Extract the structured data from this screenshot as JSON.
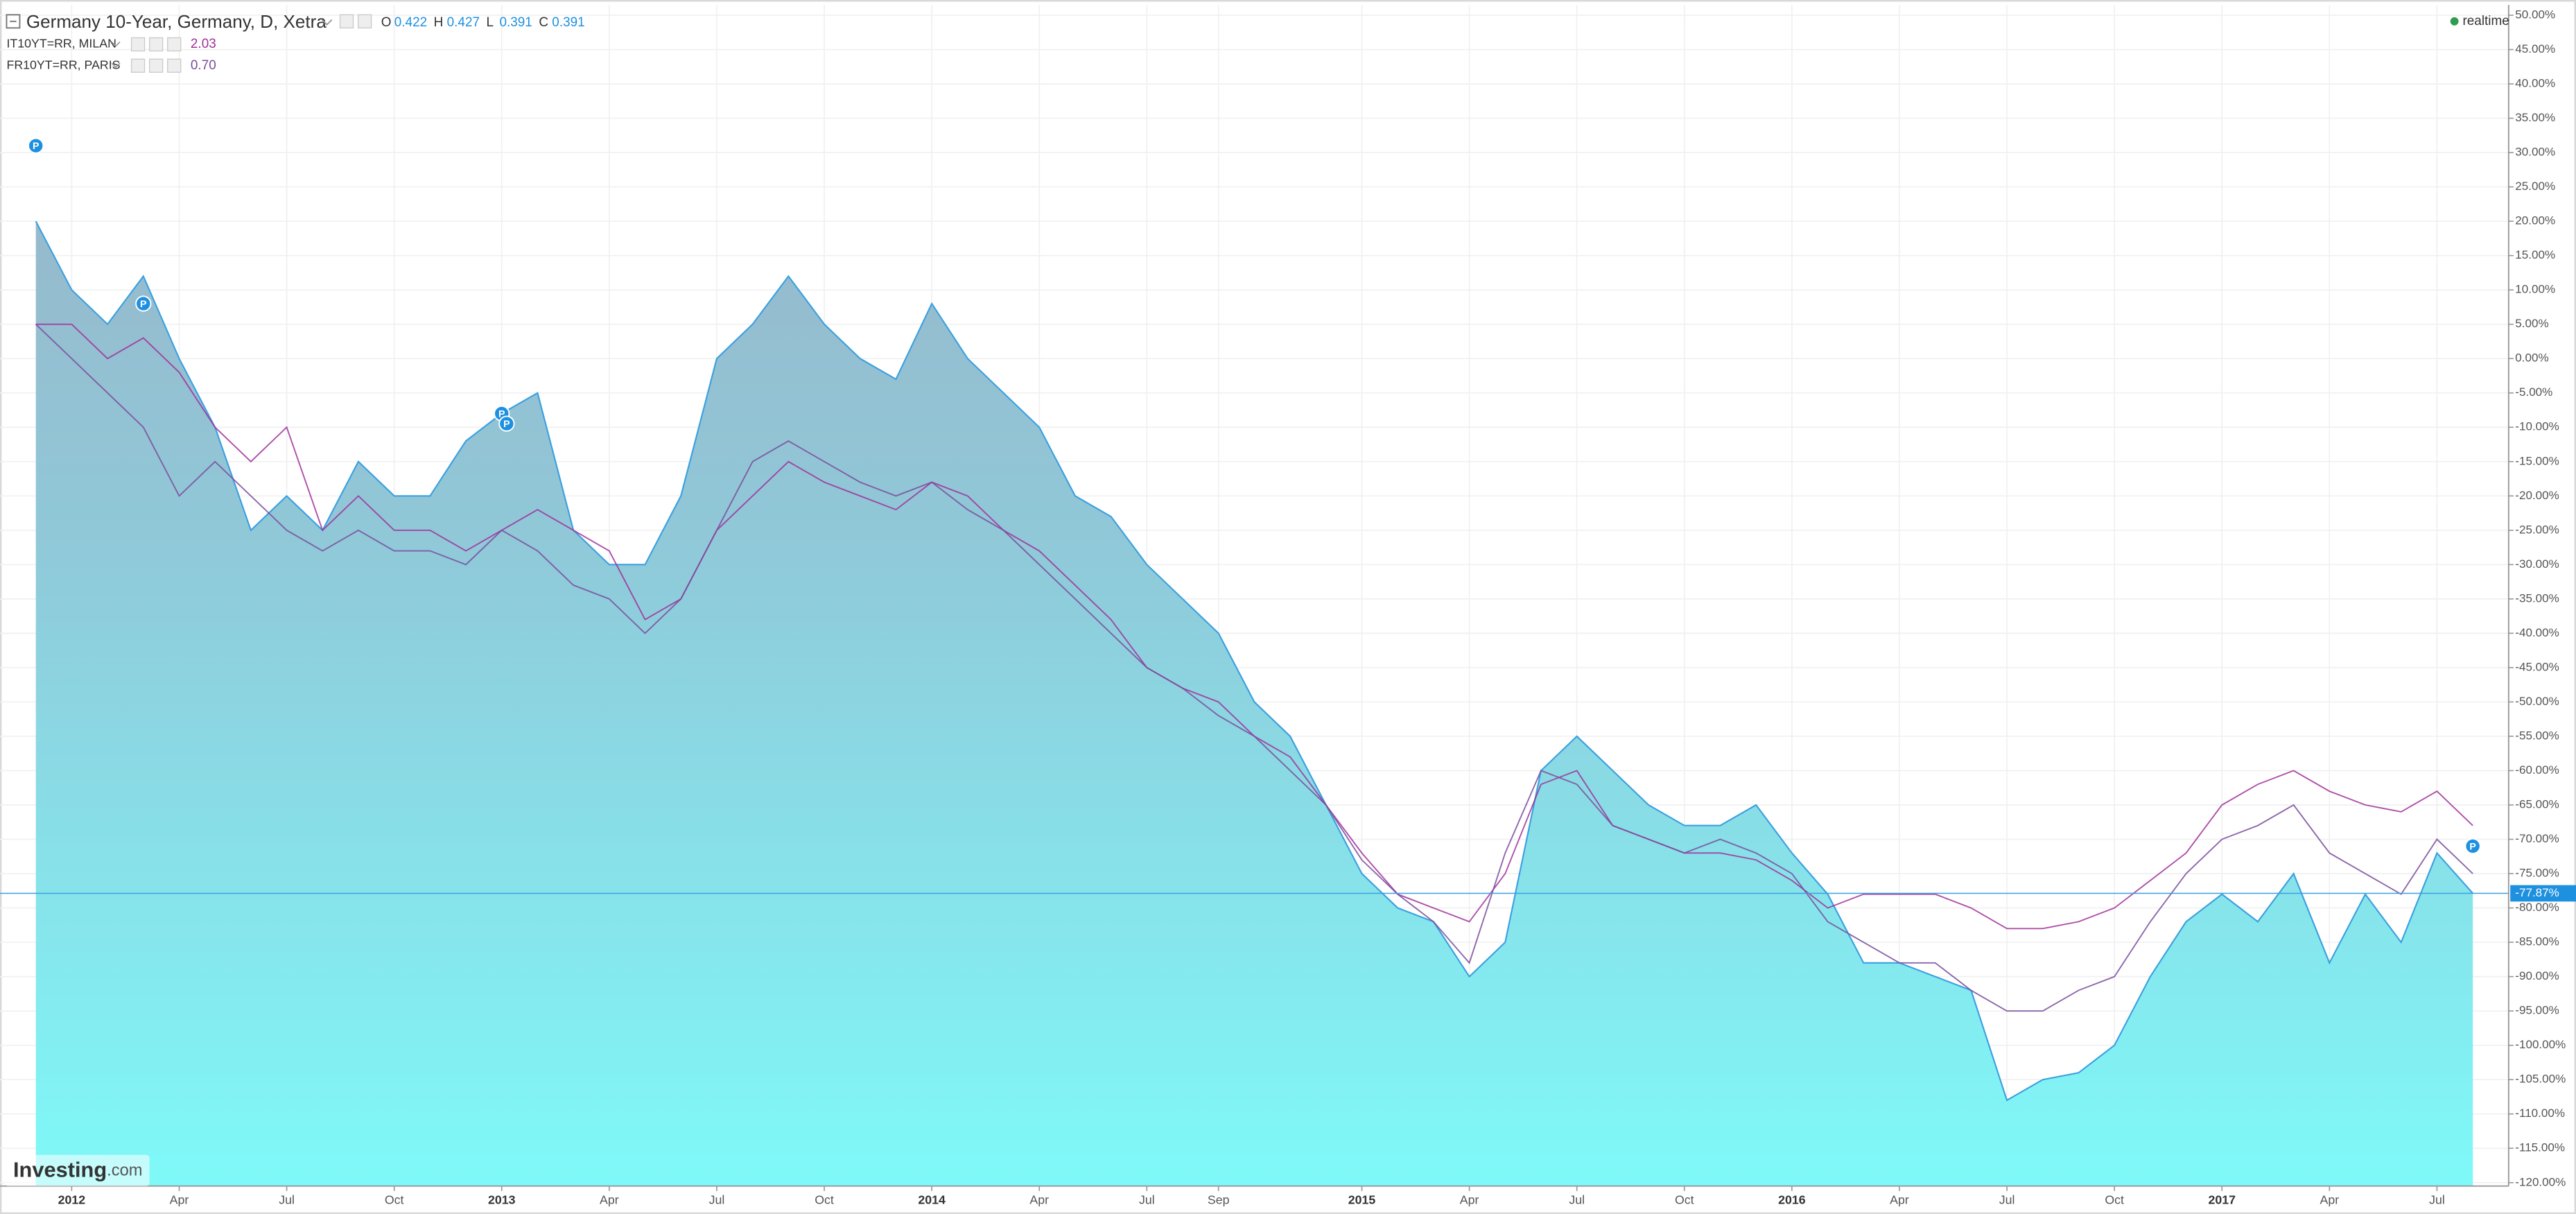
{
  "chart_data": {
    "type": "line",
    "title": "Germany 10-Year, Germany, D, Xetra",
    "ohlc": [
      {
        "label": "O",
        "value": "0.422"
      },
      {
        "label": "H",
        "value": "0.427"
      },
      {
        "label": "L",
        "value": "0.391"
      },
      {
        "label": "C",
        "value": "0.391"
      }
    ],
    "realtime": "realtime",
    "brand": {
      "name": "Investing",
      "suffix": ".com"
    },
    "x": [
      "2011-12",
      "2012-01",
      "2012-02",
      "2012-03",
      "2012-04",
      "2012-05",
      "2012-06",
      "2012-07",
      "2012-08",
      "2012-09",
      "2012-10",
      "2012-11",
      "2012-12",
      "2013-01",
      "2013-02",
      "2013-03",
      "2013-04",
      "2013-05",
      "2013-06",
      "2013-07",
      "2013-08",
      "2013-09",
      "2013-10",
      "2013-11",
      "2013-12",
      "2014-01",
      "2014-02",
      "2014-03",
      "2014-04",
      "2014-05",
      "2014-06",
      "2014-07",
      "2014-08",
      "2014-09",
      "2014-10",
      "2014-11",
      "2014-12",
      "2015-01",
      "2015-02",
      "2015-03",
      "2015-04",
      "2015-05",
      "2015-06",
      "2015-07",
      "2015-08",
      "2015-09",
      "2015-10",
      "2015-11",
      "2015-12",
      "2016-01",
      "2016-02",
      "2016-03",
      "2016-04",
      "2016-05",
      "2016-06",
      "2016-07",
      "2016-08",
      "2016-09",
      "2016-10",
      "2016-11",
      "2016-12",
      "2017-01",
      "2017-02",
      "2017-03",
      "2017-04",
      "2017-05",
      "2017-06",
      "2017-07",
      "2017-08"
    ],
    "series": [
      {
        "name": "Germany 10-Year",
        "color": "#3aa0e0",
        "area": true,
        "values": [
          20,
          10,
          5,
          12,
          0,
          -10,
          -25,
          -20,
          -25,
          -15,
          -20,
          -20,
          -12,
          -8,
          -5,
          -25,
          -30,
          -30,
          -20,
          0,
          5,
          12,
          5,
          0,
          -3,
          8,
          0,
          -5,
          -10,
          -20,
          -23,
          -30,
          -35,
          -40,
          -50,
          -55,
          -65,
          -75,
          -80,
          -82,
          -90,
          -85,
          -60,
          -55,
          -60,
          -65,
          -68,
          -68,
          -65,
          -72,
          -78,
          -88,
          -88,
          -90,
          -92,
          -108,
          -105,
          -104,
          -100,
          -90,
          -82,
          -78,
          -82,
          -75,
          -88,
          -78,
          -85,
          -72,
          -77.87
        ]
      },
      {
        "name": "IT10YT=RR, MILAN",
        "color": "#a0309a",
        "last": "2.03",
        "values": [
          5,
          5,
          0,
          3,
          -2,
          -10,
          -15,
          -10,
          -25,
          -20,
          -25,
          -25,
          -28,
          -25,
          -22,
          -25,
          -28,
          -38,
          -35,
          -25,
          -20,
          -15,
          -18,
          -20,
          -22,
          -18,
          -20,
          -25,
          -28,
          -33,
          -38,
          -45,
          -48,
          -50,
          -55,
          -58,
          -65,
          -72,
          -78,
          -80,
          -82,
          -75,
          -62,
          -60,
          -68,
          -70,
          -72,
          -72,
          -73,
          -76,
          -80,
          -78,
          -78,
          -78,
          -80,
          -83,
          -83,
          -82,
          -80,
          -76,
          -72,
          -65,
          -62,
          -60,
          -63,
          -65,
          -66,
          -63,
          -68
        ]
      },
      {
        "name": "FR10YT=RR, PARIS",
        "color": "#7a4c9c",
        "last": "0.70",
        "values": [
          5,
          0,
          -5,
          -10,
          -20,
          -15,
          -20,
          -25,
          -28,
          -25,
          -28,
          -28,
          -30,
          -25,
          -28,
          -33,
          -35,
          -40,
          -35,
          -25,
          -15,
          -12,
          -15,
          -18,
          -20,
          -18,
          -22,
          -25,
          -30,
          -35,
          -40,
          -45,
          -48,
          -52,
          -55,
          -60,
          -65,
          -73,
          -78,
          -82,
          -88,
          -72,
          -60,
          -62,
          -68,
          -70,
          -72,
          -70,
          -72,
          -75,
          -82,
          -85,
          -88,
          -88,
          -92,
          -95,
          -95,
          -92,
          -90,
          -82,
          -75,
          -70,
          -68,
          -65,
          -72,
          -75,
          -78,
          -70,
          -75
        ]
      }
    ],
    "current_value": {
      "value": -77.87,
      "label": "-77.87%"
    },
    "annotations": [
      {
        "x": "2011-12",
        "y": 31,
        "label": "P"
      },
      {
        "x": "2012-03",
        "y": 8,
        "label": "P"
      },
      {
        "x": "2013-01",
        "y": -8,
        "label": "P"
      },
      {
        "x": "2013-01",
        "y": -9,
        "label": "P"
      },
      {
        "x": "2017-08",
        "y": -71,
        "label": "P"
      }
    ],
    "xlim": [
      "2011-11",
      "2017-09"
    ],
    "xticks": [
      {
        "value": "2012-01",
        "label": "2012"
      },
      {
        "value": "2012-04",
        "label": "Apr"
      },
      {
        "value": "2012-07",
        "label": "Jul"
      },
      {
        "value": "2012-10",
        "label": "Oct"
      },
      {
        "value": "2013-01",
        "label": "2013"
      },
      {
        "value": "2013-04",
        "label": "Apr"
      },
      {
        "value": "2013-07",
        "label": "Jul"
      },
      {
        "value": "2013-10",
        "label": "Oct"
      },
      {
        "value": "2014-01",
        "label": "2014"
      },
      {
        "value": "2014-04",
        "label": "Apr"
      },
      {
        "value": "2014-07",
        "label": "Jul"
      },
      {
        "value": "2014-09",
        "label": "Sep"
      },
      {
        "value": "2015-01",
        "label": "2015"
      },
      {
        "value": "2015-04",
        "label": "Apr"
      },
      {
        "value": "2015-07",
        "label": "Jul"
      },
      {
        "value": "2015-10",
        "label": "Oct"
      },
      {
        "value": "2016-01",
        "label": "2016"
      },
      {
        "value": "2016-04",
        "label": "Apr"
      },
      {
        "value": "2016-07",
        "label": "Jul"
      },
      {
        "value": "2016-10",
        "label": "Oct"
      },
      {
        "value": "2017-01",
        "label": "2017"
      },
      {
        "value": "2017-04",
        "label": "Apr"
      },
      {
        "value": "2017-07",
        "label": "Jul"
      }
    ],
    "ylim": [
      -120.5,
      51.5
    ],
    "yticks": [
      {
        "value": 50,
        "label": "50.00%"
      },
      {
        "value": 45,
        "label": "45.00%"
      },
      {
        "value": 40,
        "label": "40.00%"
      },
      {
        "value": 35,
        "label": "35.00%"
      },
      {
        "value": 30,
        "label": "30.00%"
      },
      {
        "value": 25,
        "label": "25.00%"
      },
      {
        "value": 20,
        "label": "20.00%"
      },
      {
        "value": 15,
        "label": "15.00%"
      },
      {
        "value": 10,
        "label": "10.00%"
      },
      {
        "value": 5,
        "label": "5.00%"
      },
      {
        "value": 0,
        "label": "0.00%"
      },
      {
        "value": -5,
        "label": "-5.00%"
      },
      {
        "value": -10,
        "label": "-10.00%"
      },
      {
        "value": -15,
        "label": "-15.00%"
      },
      {
        "value": -20,
        "label": "-20.00%"
      },
      {
        "value": -25,
        "label": "-25.00%"
      },
      {
        "value": -30,
        "label": "-30.00%"
      },
      {
        "value": -35,
        "label": "-35.00%"
      },
      {
        "value": -40,
        "label": "-40.00%"
      },
      {
        "value": -45,
        "label": "-45.00%"
      },
      {
        "value": -50,
        "label": "-50.00%"
      },
      {
        "value": -55,
        "label": "-55.00%"
      },
      {
        "value": -60,
        "label": "-60.00%"
      },
      {
        "value": -65,
        "label": "-65.00%"
      },
      {
        "value": -70,
        "label": "-70.00%"
      },
      {
        "value": -75,
        "label": "-75.00%"
      },
      {
        "value": -80,
        "label": "-80.00%"
      },
      {
        "value": -85,
        "label": "-85.00%"
      },
      {
        "value": -90,
        "label": "-90.00%"
      },
      {
        "value": -95,
        "label": "-95.00%"
      },
      {
        "value": -100,
        "label": "-100.00%"
      },
      {
        "value": -105,
        "label": "-105.00%"
      },
      {
        "value": -110,
        "label": "-110.00%"
      },
      {
        "value": -115,
        "label": "-115.00%"
      },
      {
        "value": -120,
        "label": "-120.00%"
      }
    ],
    "grid": true
  }
}
